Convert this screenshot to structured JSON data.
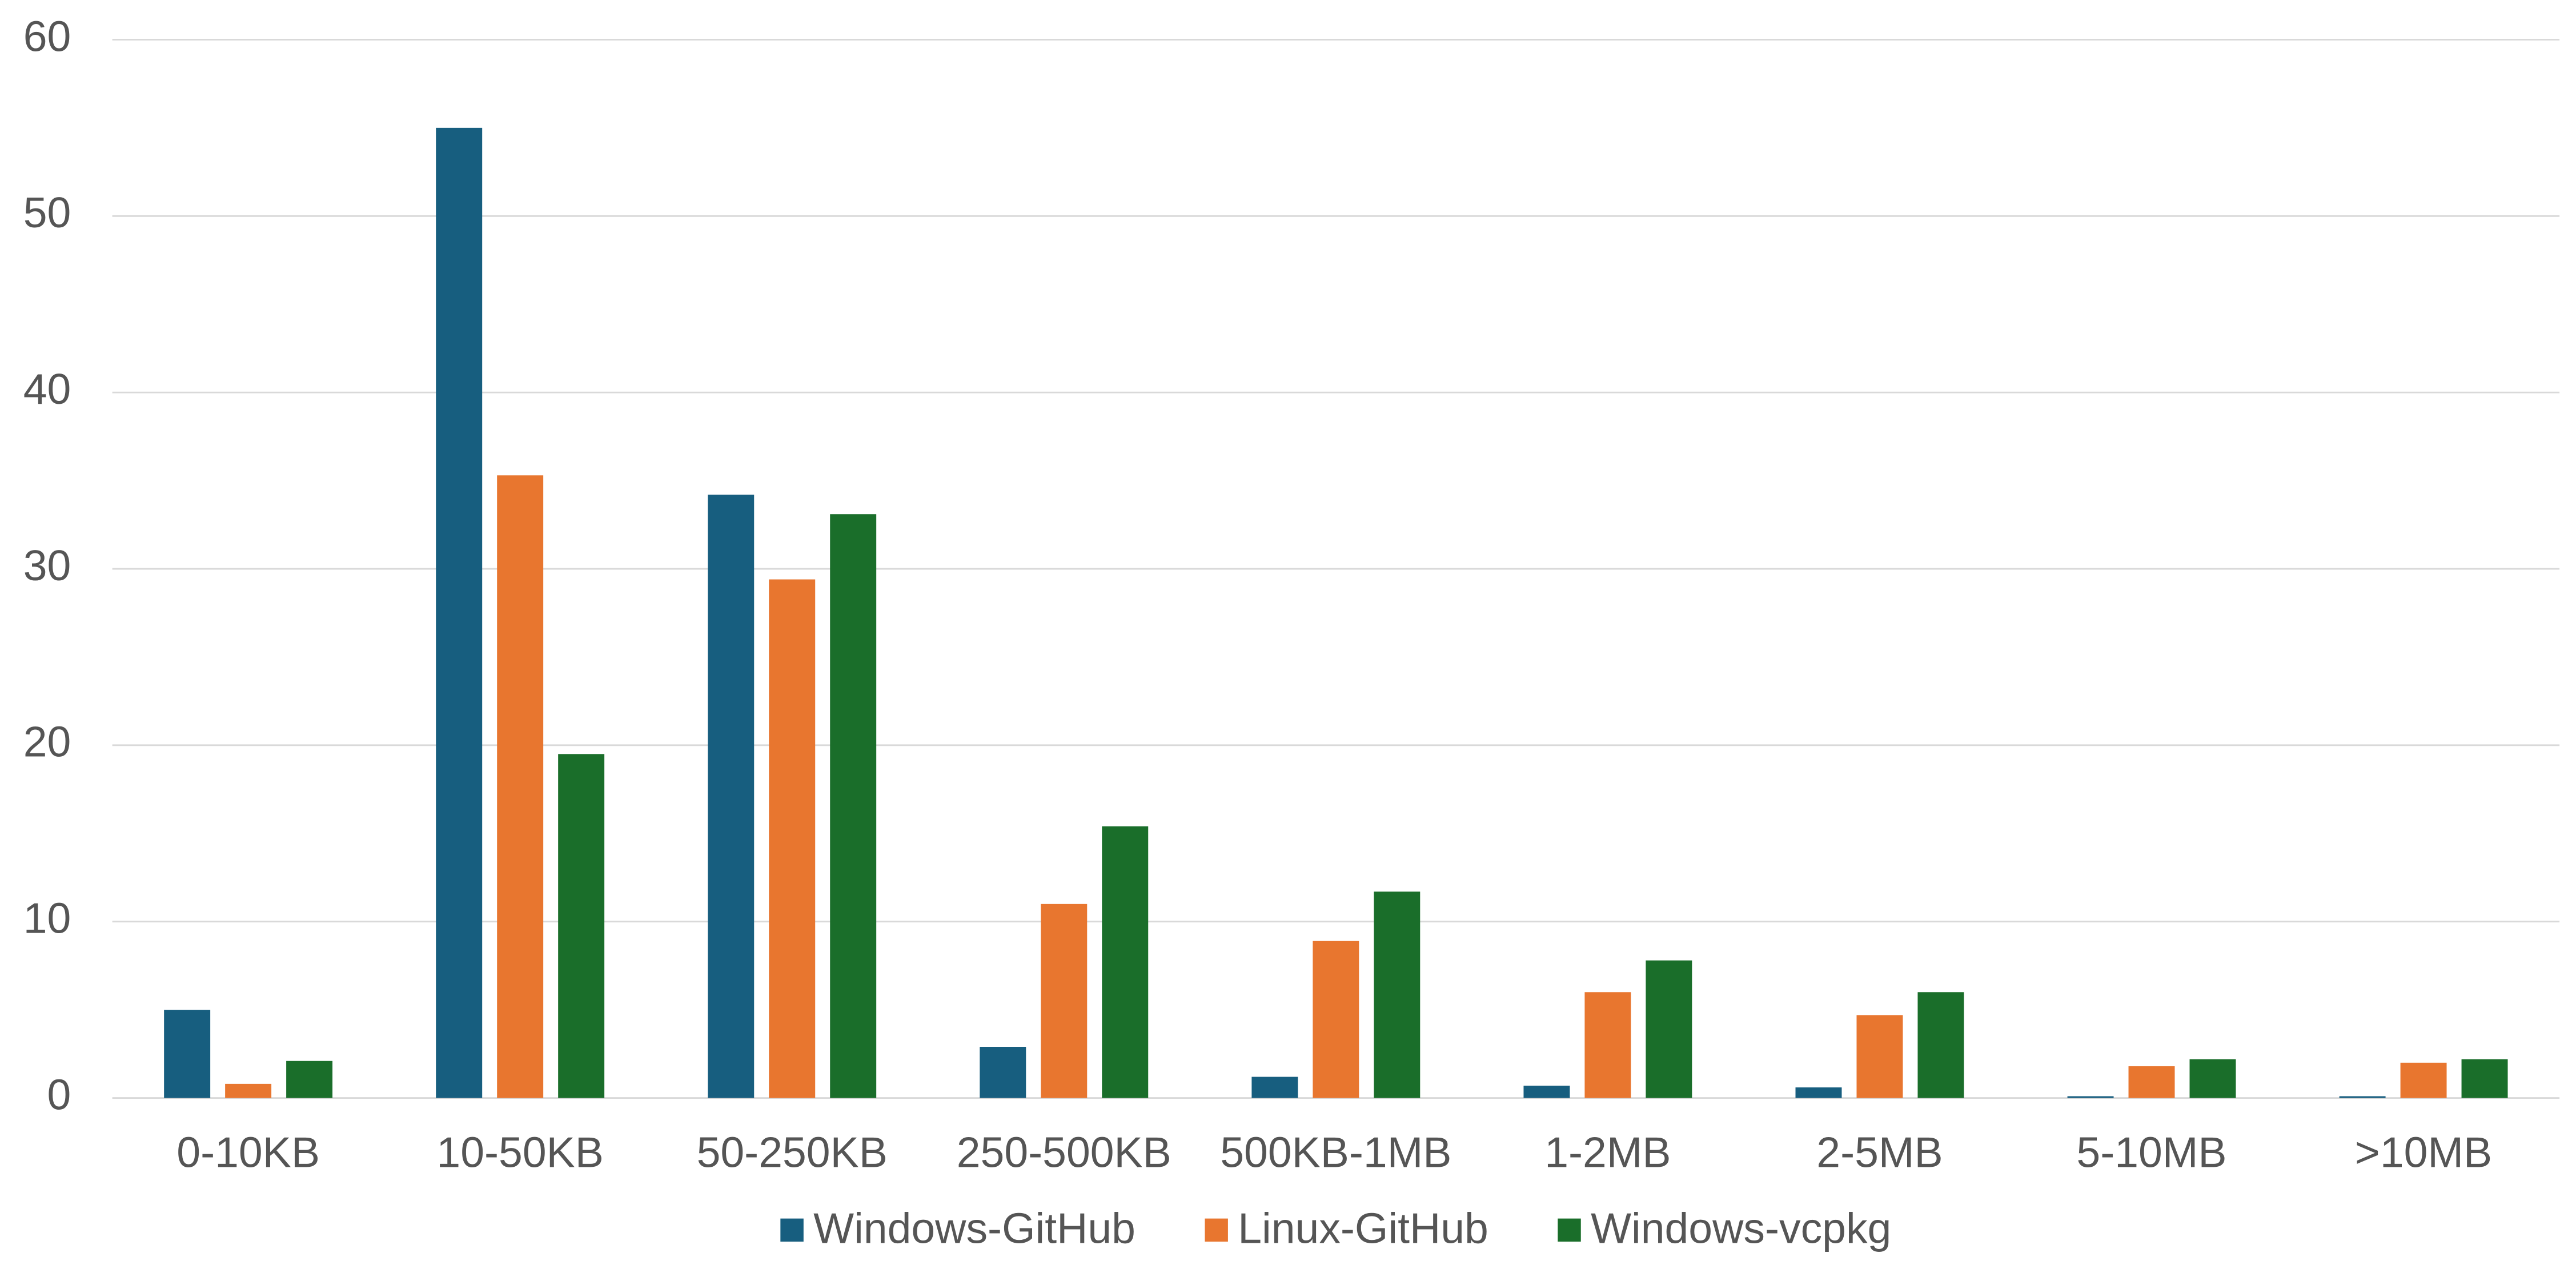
{
  "chart_data": {
    "type": "bar",
    "categories": [
      "0-10KB",
      "10-50KB",
      "50-250KB",
      "250-500KB",
      "500KB-1MB",
      "1-2MB",
      "2-5MB",
      "5-10MB",
      ">10MB"
    ],
    "series": [
      {
        "name": "Windows-GitHub",
        "color": "#175e7f",
        "values": [
          5,
          55,
          34.2,
          2.9,
          1.2,
          0.7,
          0.6,
          0.1,
          0.1
        ]
      },
      {
        "name": "Linux-GitHub",
        "color": "#e8762f",
        "values": [
          0.8,
          35.3,
          29.4,
          11.0,
          8.9,
          6.0,
          4.7,
          1.8,
          2.0
        ]
      },
      {
        "name": "Windows-vcpkg",
        "color": "#1a6e2a",
        "values": [
          2.1,
          19.5,
          33.1,
          15.4,
          11.7,
          7.8,
          6.0,
          2.2,
          2.2
        ]
      }
    ],
    "ylim": [
      0,
      60
    ],
    "yticks": [
      0,
      10,
      20,
      30,
      40,
      50,
      60
    ],
    "grid": true,
    "legend": "bottom"
  }
}
